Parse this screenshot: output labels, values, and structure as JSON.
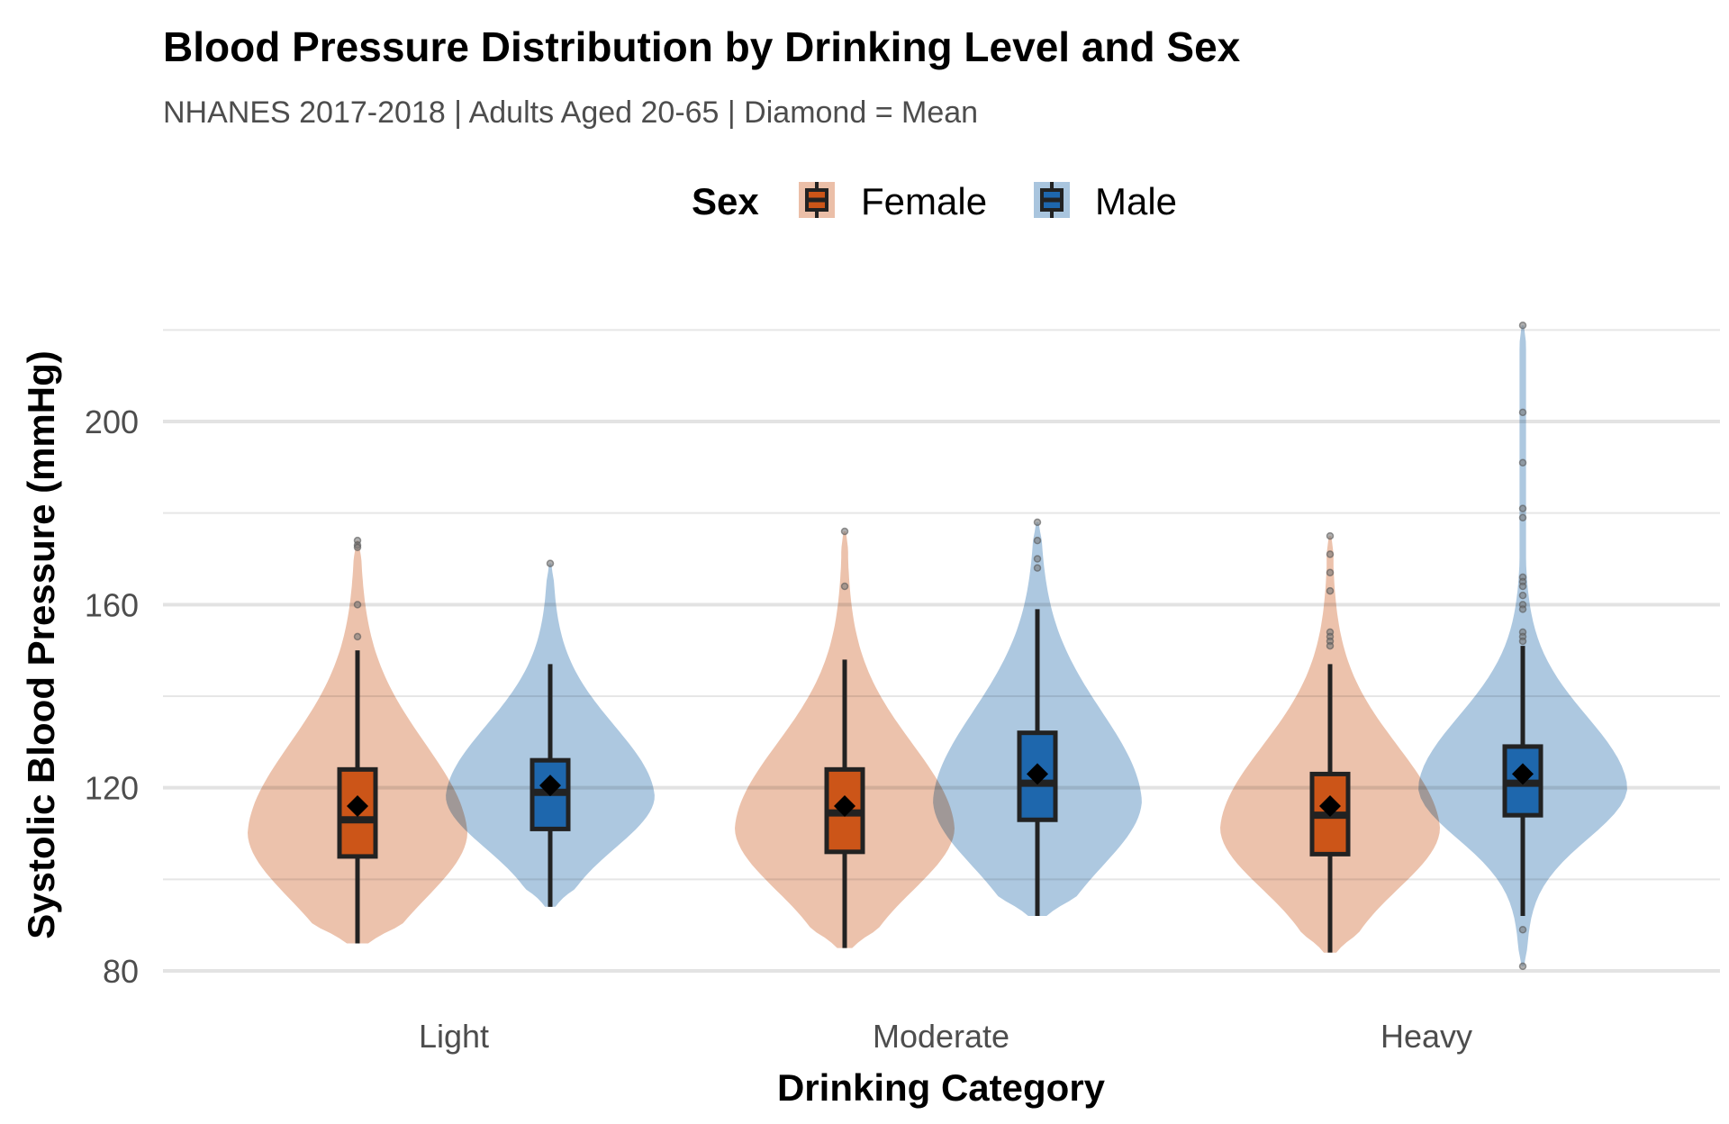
{
  "chart_data": {
    "type": "violin",
    "title": "Blood Pressure Distribution by Drinking Level and Sex",
    "subtitle": "NHANES 2017-2018 | Adults Aged 20-65 | Diamond = Mean",
    "xlabel": "Drinking Category",
    "ylabel": "Systolic Blood Pressure (mmHg)",
    "ylim": [
      76,
      222
    ],
    "y_major_ticks": [
      80,
      120,
      160,
      200
    ],
    "y_minor_ticks": [
      100,
      140,
      180,
      220
    ],
    "grid": true,
    "categories": [
      "Light",
      "Moderate",
      "Heavy"
    ],
    "legend": {
      "title": "Sex",
      "position": "top",
      "entries": [
        {
          "name": "Female",
          "box_color": "#CC5518",
          "violin_color": "#EBBFA8"
        },
        {
          "name": "Male",
          "box_color": "#1E67AD",
          "violin_color": "#A9C5DE"
        }
      ]
    },
    "mean_marker": "diamond",
    "series": [
      {
        "name": "Female",
        "box_color": "#CC5518",
        "violin_color": "#EBBFA8",
        "groups": [
          {
            "category": "Light",
            "whisker_low": 86,
            "q1": 105,
            "median": 113,
            "q3": 124,
            "whisker_high": 150,
            "mean": 116,
            "violin_min": 86,
            "violin_max": 174,
            "violin_mode": 110,
            "outliers": [
              174,
              173,
              172.5,
              160,
              153
            ]
          },
          {
            "category": "Moderate",
            "whisker_low": 85,
            "q1": 106,
            "median": 114.5,
            "q3": 124,
            "whisker_high": 148,
            "mean": 116,
            "violin_min": 85,
            "violin_max": 176,
            "violin_mode": 111,
            "outliers": [
              176,
              164
            ]
          },
          {
            "category": "Heavy",
            "whisker_low": 84,
            "q1": 105.5,
            "median": 114,
            "q3": 123,
            "whisker_high": 147,
            "mean": 116,
            "violin_min": 84,
            "violin_max": 175,
            "violin_mode": 111,
            "outliers": [
              175,
              171,
              167,
              163,
              154,
              153,
              152,
              151
            ]
          }
        ]
      },
      {
        "name": "Male",
        "box_color": "#1E67AD",
        "violin_color": "#A9C5DE",
        "groups": [
          {
            "category": "Light",
            "whisker_low": 94,
            "q1": 111,
            "median": 119,
            "q3": 126,
            "whisker_high": 147,
            "mean": 120.5,
            "violin_min": 94,
            "violin_max": 169,
            "violin_mode": 118,
            "outliers": [
              169
            ]
          },
          {
            "category": "Moderate",
            "whisker_low": 92,
            "q1": 113,
            "median": 121,
            "q3": 132,
            "whisker_high": 159,
            "mean": 123,
            "violin_min": 92,
            "violin_max": 178,
            "violin_mode": 117,
            "outliers": [
              178,
              174,
              170,
              168
            ]
          },
          {
            "category": "Heavy",
            "whisker_low": 92,
            "q1": 114,
            "median": 121,
            "q3": 129,
            "whisker_high": 151,
            "mean": 123,
            "violin_min": 81,
            "violin_max": 221,
            "violin_mode": 120,
            "outliers": [
              221,
              202,
              191,
              181,
              179,
              166,
              165,
              164,
              162,
              160,
              159,
              154,
              153,
              152,
              89,
              81
            ]
          }
        ]
      }
    ]
  }
}
